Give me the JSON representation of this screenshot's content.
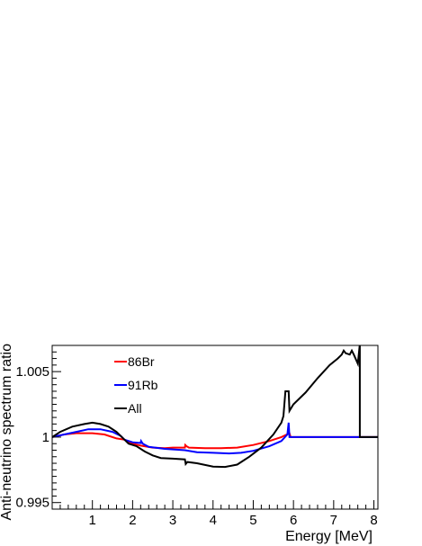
{
  "chart_data": {
    "type": "line",
    "xlabel": "Energy [MeV]",
    "ylabel": "Anti-neutrino spectrum ratio",
    "xlim": [
      0,
      8.1
    ],
    "ylim": [
      0.9945,
      1.007
    ],
    "x_ticks": [
      1,
      2,
      3,
      4,
      5,
      6,
      7,
      8
    ],
    "x_tick_labels": [
      "1",
      "2",
      "3",
      "4",
      "5",
      "6",
      "7",
      "8"
    ],
    "y_ticks": [
      0.995,
      1,
      1.005
    ],
    "y_tick_labels": [
      "0.995",
      "1",
      "1.005"
    ],
    "legend_position": "top-left",
    "grid": false,
    "series": [
      {
        "name": "86Br",
        "color": "#ff0000",
        "points": [
          [
            0,
            1.0
          ],
          [
            0.3,
            1.0002
          ],
          [
            0.6,
            1.0003
          ],
          [
            1.0,
            1.0003
          ],
          [
            1.3,
            1.0002
          ],
          [
            1.6,
            0.9999
          ],
          [
            1.8,
            0.9998
          ],
          [
            2.0,
            0.9995
          ],
          [
            2.2,
            0.99935
          ],
          [
            2.5,
            0.9992
          ],
          [
            2.8,
            0.99915
          ],
          [
            3.0,
            0.9992
          ],
          [
            3.3,
            0.9992
          ],
          [
            3.31,
            0.9994
          ],
          [
            3.34,
            0.9993
          ],
          [
            3.4,
            0.9992
          ],
          [
            3.8,
            0.99915
          ],
          [
            4.2,
            0.99915
          ],
          [
            4.6,
            0.9992
          ],
          [
            5.0,
            0.9994
          ],
          [
            5.4,
            0.9997
          ],
          [
            5.7,
            1.0
          ],
          [
            5.9,
            1.0003
          ],
          [
            5.93,
            1.0
          ],
          [
            7.6,
            1.0
          ],
          [
            8.1,
            1.0
          ]
        ]
      },
      {
        "name": "91Rb",
        "color": "#0000ff",
        "points": [
          [
            0,
            1.0
          ],
          [
            0.3,
            1.0002
          ],
          [
            0.6,
            1.0004
          ],
          [
            0.9,
            1.0006
          ],
          [
            1.2,
            1.0006
          ],
          [
            1.5,
            1.0004
          ],
          [
            1.7,
            1.0001
          ],
          [
            1.8,
            0.9998
          ],
          [
            2.0,
            0.9996
          ],
          [
            2.2,
            0.99955
          ],
          [
            2.21,
            0.9997
          ],
          [
            2.25,
            0.9995
          ],
          [
            2.4,
            0.99925
          ],
          [
            2.8,
            0.9991
          ],
          [
            3.3,
            0.999
          ],
          [
            3.6,
            0.99885
          ],
          [
            4.0,
            0.9988
          ],
          [
            4.4,
            0.99875
          ],
          [
            4.7,
            0.9988
          ],
          [
            5.0,
            0.99895
          ],
          [
            5.4,
            0.9993
          ],
          [
            5.7,
            0.9997
          ],
          [
            5.85,
            1.0002
          ],
          [
            5.88,
            1.0011
          ],
          [
            5.9,
            1.0
          ],
          [
            7.6,
            1.0
          ],
          [
            8.1,
            1.0
          ]
        ]
      },
      {
        "name": "All",
        "color": "#000000",
        "points": [
          [
            0,
            1.0
          ],
          [
            0.2,
            1.0004
          ],
          [
            0.5,
            1.0008
          ],
          [
            0.8,
            1.001
          ],
          [
            1.0,
            1.0011
          ],
          [
            1.2,
            1.001
          ],
          [
            1.4,
            1.0008
          ],
          [
            1.6,
            1.0004
          ],
          [
            1.8,
            0.9998
          ],
          [
            1.9,
            0.9995
          ],
          [
            2.1,
            0.9993
          ],
          [
            2.3,
            0.9989
          ],
          [
            2.5,
            0.9986
          ],
          [
            2.7,
            0.9984
          ],
          [
            3.0,
            0.99835
          ],
          [
            3.3,
            0.9983
          ],
          [
            3.32,
            0.99795
          ],
          [
            3.36,
            0.9981
          ],
          [
            3.6,
            0.998
          ],
          [
            4.0,
            0.99775
          ],
          [
            4.3,
            0.99772
          ],
          [
            4.6,
            0.9979
          ],
          [
            4.9,
            0.9985
          ],
          [
            5.2,
            0.9992
          ],
          [
            5.5,
            1.0002
          ],
          [
            5.7,
            1.0011
          ],
          [
            5.75,
            1.0016
          ],
          [
            5.8,
            1.0035
          ],
          [
            5.88,
            1.0035
          ],
          [
            5.9,
            1.002
          ],
          [
            6.0,
            1.0025
          ],
          [
            6.3,
            1.0034
          ],
          [
            6.6,
            1.0045
          ],
          [
            6.9,
            1.0055
          ],
          [
            7.1,
            1.006
          ],
          [
            7.2,
            1.0063
          ],
          [
            7.25,
            1.0066
          ],
          [
            7.3,
            1.0064
          ],
          [
            7.4,
            1.0063
          ],
          [
            7.45,
            1.0066
          ],
          [
            7.5,
            1.0063
          ],
          [
            7.6,
            1.0056
          ],
          [
            7.65,
            1.0071
          ],
          [
            7.65,
            1.0
          ],
          [
            8.1,
            1.0
          ]
        ]
      }
    ]
  }
}
